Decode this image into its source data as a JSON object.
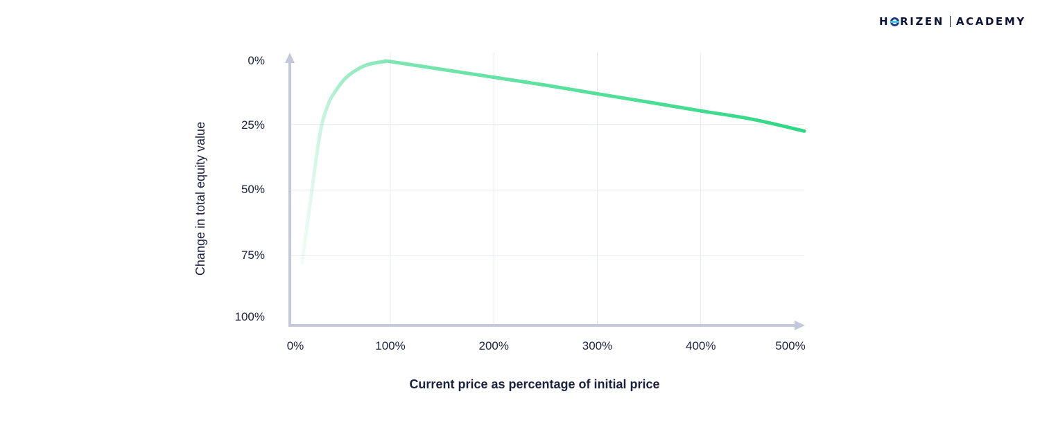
{
  "logo": {
    "brand_pre": "H",
    "brand_post": "RIZEN",
    "academy": "ACADEMY"
  },
  "colors": {
    "line": "#2fd884",
    "axis": "#c3c8da",
    "grid": "#e6e8ee",
    "text": "#1b2140"
  },
  "chart_data": {
    "type": "line",
    "title": "",
    "xlabel": "Current price as percentage of initial price",
    "ylabel": "Change in total equity value",
    "xlim": [
      0,
      500
    ],
    "ylim": [
      0,
      100
    ],
    "y_inverted": true,
    "grid": true,
    "x_ticks": [
      {
        "value": 0,
        "label": "0%"
      },
      {
        "value": 100,
        "label": "100%"
      },
      {
        "value": 200,
        "label": "200%"
      },
      {
        "value": 300,
        "label": "300%"
      },
      {
        "value": 400,
        "label": "400%"
      },
      {
        "value": 500,
        "label": "500%"
      }
    ],
    "y_ticks": [
      {
        "value": 0,
        "label": "0%"
      },
      {
        "value": 25,
        "label": "25%"
      },
      {
        "value": 50,
        "label": "50%"
      },
      {
        "value": 75,
        "label": "75%"
      },
      {
        "value": 100,
        "label": "100%"
      }
    ],
    "series": [
      {
        "x": [
          12,
          20,
          30,
          38,
          45,
          55,
          65,
          75,
          85,
          95,
          100,
          150,
          200,
          250,
          300,
          350,
          400,
          450,
          500
        ],
        "y": [
          77,
          55,
          28,
          17,
          12,
          7,
          4,
          2,
          1,
          0.5,
          0.5,
          3.5,
          6.5,
          9.5,
          12.8,
          16,
          19.3,
          22.5,
          27
        ]
      }
    ]
  }
}
